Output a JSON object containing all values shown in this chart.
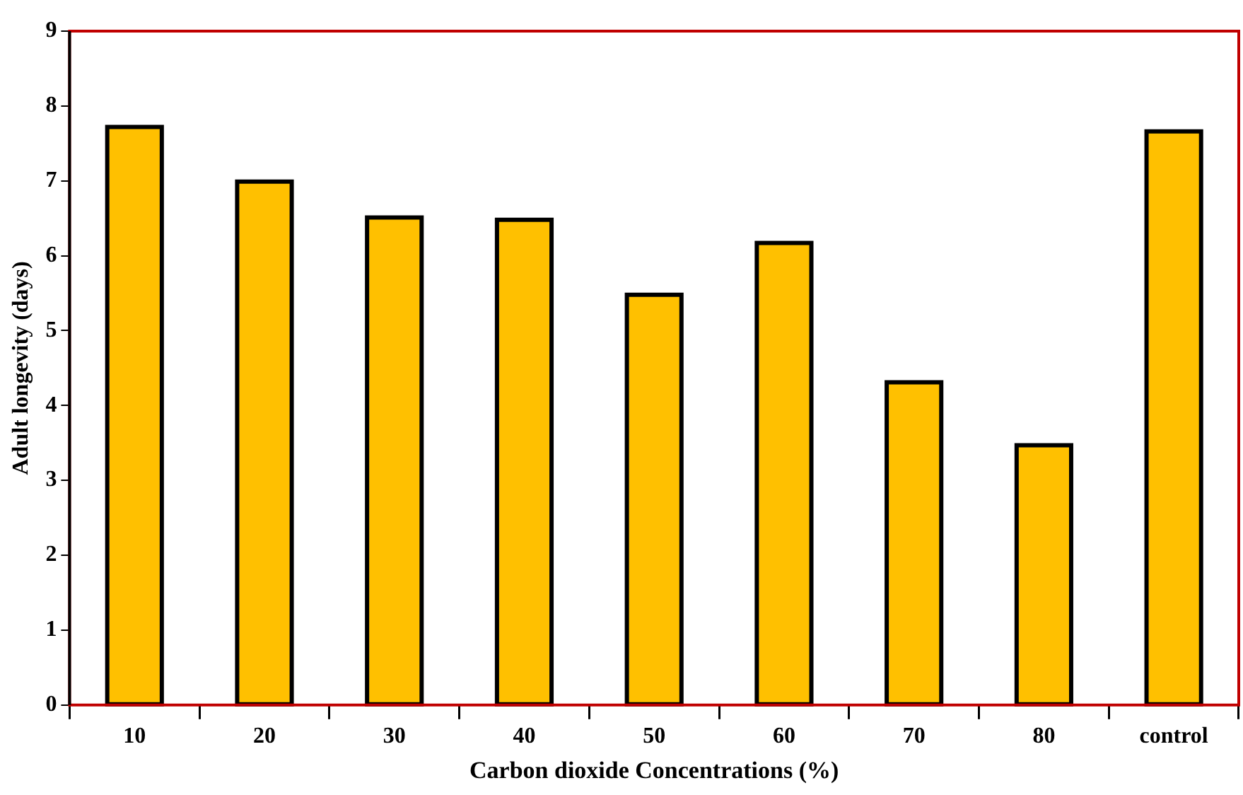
{
  "chart_data": {
    "type": "bar",
    "xlabel": "Carbon dioxide Concentrations (%)",
    "ylabel": "Adult longevity (days)",
    "categories": [
      "10",
      "20",
      "30",
      "40",
      "50",
      "60",
      "70",
      "80",
      "control"
    ],
    "values": [
      7.72,
      6.99,
      6.51,
      6.48,
      5.48,
      6.17,
      4.31,
      3.47,
      7.66
    ],
    "color": "#ffc000",
    "ylim": [
      0,
      9
    ],
    "yticks": [
      0,
      1,
      2,
      3,
      4,
      5,
      6,
      7,
      8,
      9
    ],
    "grid": false,
    "legend": false
  }
}
